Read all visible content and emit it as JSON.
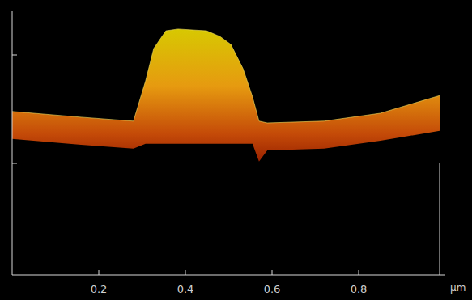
{
  "chart_data": {
    "type": "area",
    "x": [
      0.0,
      0.159,
      0.28,
      0.308,
      0.327,
      0.355,
      0.383,
      0.449,
      0.48,
      0.505,
      0.533,
      0.555,
      0.57,
      0.589,
      0.72,
      0.85,
      0.987
    ],
    "values": [
      0.371,
      0.358,
      0.349,
      0.44,
      0.514,
      0.554,
      0.558,
      0.554,
      0.541,
      0.523,
      0.468,
      0.404,
      0.349,
      0.345,
      0.349,
      0.367,
      0.407
    ],
    "xlim": [
      0,
      1
    ],
    "xticks": [
      0.2,
      0.4,
      0.6,
      0.8
    ],
    "ylim": [
      0,
      0.6
    ],
    "x_label": "µm",
    "tick_labels": "x"
  }
}
